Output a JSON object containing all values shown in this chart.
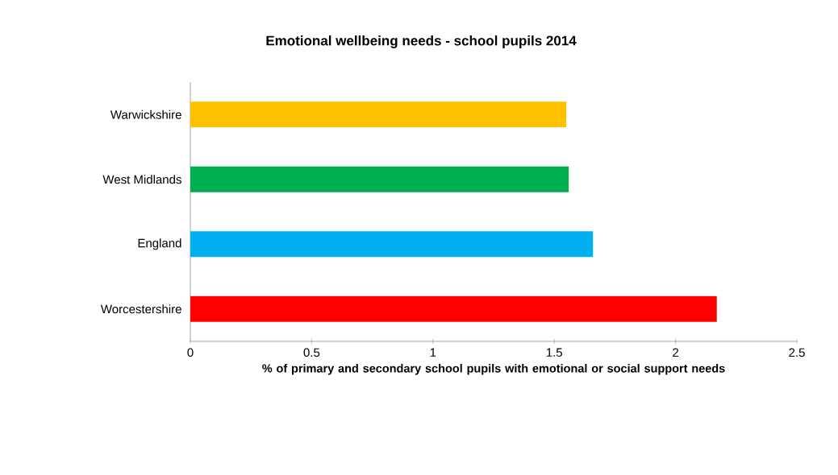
{
  "chart_data": {
    "type": "bar",
    "orientation": "horizontal",
    "title": "Emotional wellbeing needs - school pupils 2014",
    "xlabel": "% of primary and secondary school pupils with emotional or social support needs",
    "categories": [
      "Warwickshire",
      "West Midlands",
      "England",
      "Worcestershire"
    ],
    "values": [
      1.55,
      1.56,
      1.66,
      2.17
    ],
    "colors": [
      "#ffc000",
      "#00b050",
      "#00b0f0",
      "#ff0000"
    ],
    "xlim": [
      0,
      2.5
    ],
    "xticks": [
      0,
      0.5,
      1,
      1.5,
      2,
      2.5
    ]
  }
}
